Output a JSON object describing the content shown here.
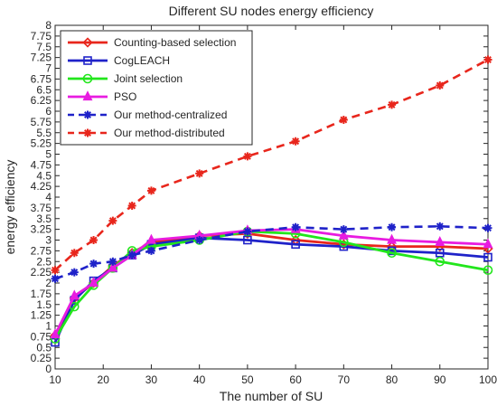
{
  "chart_data": {
    "type": "line",
    "title": "Different SU nodes energy efficiency",
    "xlabel": "The number of SU",
    "ylabel": "energy efficiency",
    "xlim": [
      10,
      100
    ],
    "ylim": [
      0,
      8
    ],
    "xticks": [
      10,
      20,
      30,
      40,
      50,
      60,
      70,
      80,
      90,
      100
    ],
    "yticks": [
      0,
      0.25,
      0.5,
      0.75,
      1,
      1.25,
      1.5,
      1.75,
      2,
      2.25,
      2.5,
      2.75,
      3,
      3.25,
      3.5,
      3.75,
      4,
      4.25,
      4.5,
      4.75,
      5,
      5.25,
      5.5,
      5.75,
      6,
      6.25,
      6.5,
      6.75,
      7,
      7.25,
      7.5,
      7.75,
      8
    ],
    "grid": false,
    "legend_position": "top-left",
    "series": [
      {
        "name": "Counting-based selection",
        "color": "#e8261c",
        "style": "solid",
        "marker": "diamond",
        "x": [
          10,
          14,
          18,
          22,
          26,
          30,
          40,
          50,
          60,
          70,
          80,
          90,
          100
        ],
        "y": [
          0.78,
          1.65,
          2.0,
          2.4,
          2.7,
          2.95,
          3.1,
          3.15,
          3.0,
          2.9,
          2.85,
          2.85,
          2.8
        ]
      },
      {
        "name": "CogLEACH",
        "color": "#1f22c9",
        "style": "solid",
        "marker": "square",
        "x": [
          10,
          14,
          18,
          22,
          26,
          30,
          40,
          50,
          60,
          70,
          80,
          90,
          100
        ],
        "y": [
          0.62,
          1.6,
          2.05,
          2.35,
          2.65,
          2.9,
          3.05,
          3.0,
          2.9,
          2.85,
          2.75,
          2.7,
          2.6
        ]
      },
      {
        "name": "Joint selection",
        "color": "#22e61c",
        "style": "solid",
        "marker": "circle",
        "x": [
          10,
          14,
          18,
          22,
          26,
          30,
          40,
          50,
          60,
          70,
          80,
          90,
          100
        ],
        "y": [
          0.7,
          1.45,
          1.95,
          2.35,
          2.75,
          2.85,
          3.0,
          3.2,
          3.15,
          2.95,
          2.7,
          2.5,
          2.3
        ]
      },
      {
        "name": "PSO",
        "color": "#e81ce0",
        "style": "solid",
        "marker": "triangle",
        "x": [
          10,
          14,
          18,
          22,
          26,
          30,
          40,
          50,
          60,
          70,
          80,
          90,
          100
        ],
        "y": [
          0.8,
          1.7,
          2.0,
          2.35,
          2.65,
          3.0,
          3.1,
          3.22,
          3.25,
          3.1,
          3.0,
          2.95,
          2.9
        ]
      },
      {
        "name": "Our method-centralized",
        "color": "#1f22c9",
        "style": "dashed",
        "marker": "asterisk",
        "x": [
          10,
          14,
          18,
          22,
          26,
          30,
          40,
          50,
          60,
          70,
          80,
          90,
          100
        ],
        "y": [
          2.1,
          2.25,
          2.45,
          2.5,
          2.65,
          2.75,
          3.0,
          3.2,
          3.3,
          3.25,
          3.3,
          3.32,
          3.28
        ]
      },
      {
        "name": "Our method-distributed",
        "color": "#e8261c",
        "style": "dashed",
        "marker": "asterisk",
        "x": [
          10,
          14,
          18,
          22,
          26,
          30,
          40,
          50,
          60,
          70,
          80,
          90,
          100
        ],
        "y": [
          2.3,
          2.7,
          3.0,
          3.45,
          3.8,
          4.15,
          4.55,
          4.95,
          5.3,
          5.8,
          6.15,
          6.6,
          7.2
        ]
      }
    ]
  }
}
